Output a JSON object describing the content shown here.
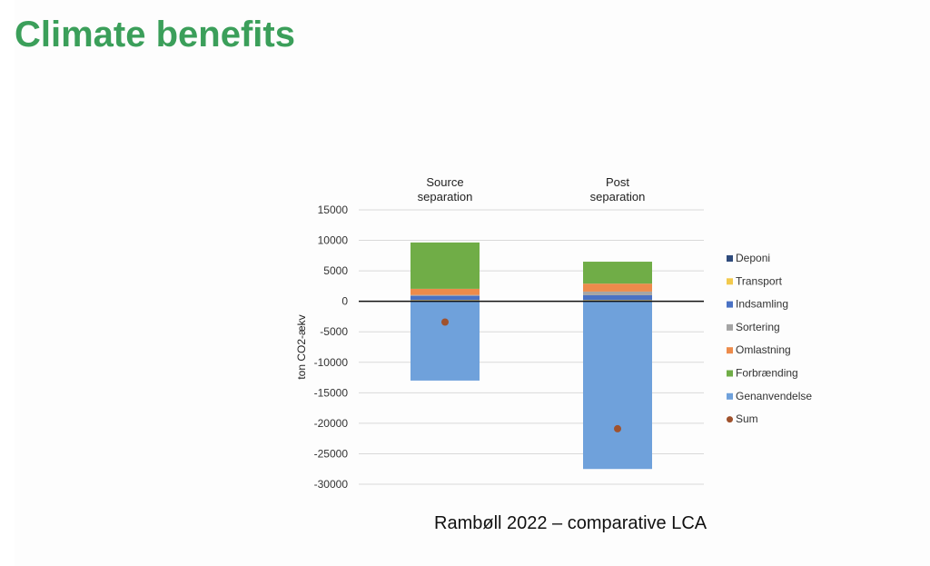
{
  "page": {
    "title": "Climate benefits",
    "caption": "Rambøll 2022 – comparative LCA"
  },
  "colors": {
    "title": "#3b9f5a",
    "Deponi": "#2f4b7c",
    "Transport": "#f2c94c",
    "Indsamling": "#4a72c4",
    "Sortering": "#a5a5a5",
    "Omlastning": "#ed8b4b",
    "Forbrænding": "#70ad47",
    "Genanvendelse": "#6fa1db",
    "Sum": "#a0522d"
  },
  "chart_data": {
    "type": "bar",
    "stacked": true,
    "categories": [
      "Source\nseparation",
      "Post\nseparation"
    ],
    "ylabel": "ton CO2-ækv",
    "xlabel": "",
    "ylim": [
      -30000,
      15000
    ],
    "yticks": [
      15000,
      10000,
      5000,
      0,
      -5000,
      -10000,
      -15000,
      -20000,
      -25000,
      -30000
    ],
    "ytick_labels": [
      "15000",
      "10000",
      "5000",
      "0",
      "-5000",
      "-10000",
      "-15000",
      "-20000",
      "-25000",
      "-30000"
    ],
    "grid": true,
    "legend": "right",
    "series": [
      {
        "name": "Deponi",
        "values": [
          50,
          50
        ]
      },
      {
        "name": "Transport",
        "values": [
          150,
          150
        ]
      },
      {
        "name": "Indsamling",
        "values": [
          700,
          800
        ]
      },
      {
        "name": "Sortering",
        "values": [
          150,
          600
        ]
      },
      {
        "name": "Omlastning",
        "values": [
          1000,
          1300
        ]
      },
      {
        "name": "Forbrænding",
        "values": [
          7600,
          3600
        ]
      },
      {
        "name": "Genanvendelse",
        "values": [
          -13000,
          -27500
        ]
      }
    ],
    "sum": {
      "name": "Sum",
      "values": [
        -3400,
        -20900
      ]
    }
  }
}
